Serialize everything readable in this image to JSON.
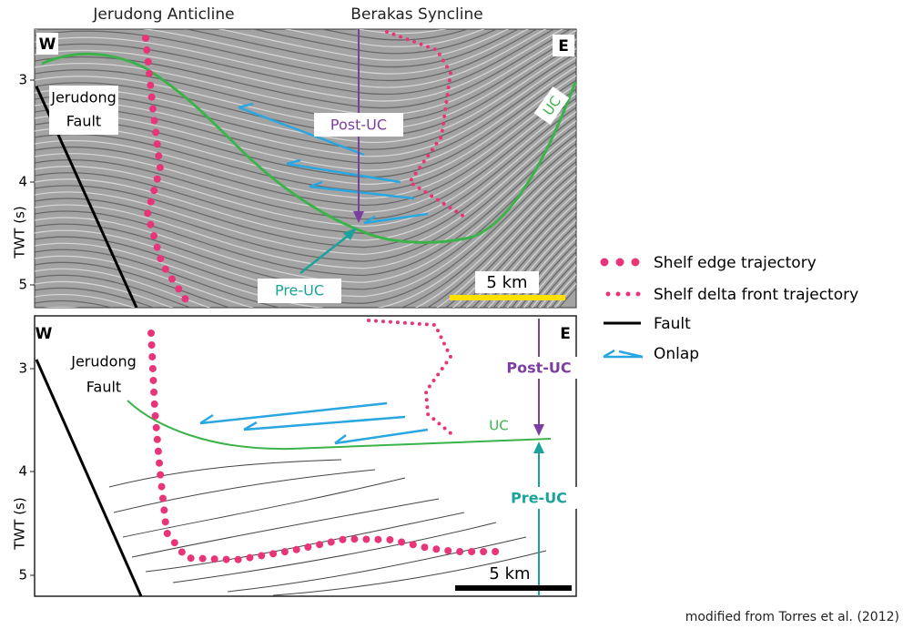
{
  "header": {
    "left": "Jerudong Anticline",
    "center": "Berakas Syncline"
  },
  "panel_a": {
    "west": "W",
    "east": "E",
    "fault": [
      "Jerudong",
      "Fault"
    ],
    "post": "Post-UC",
    "pre": "Pre-UC",
    "uc": "UC",
    "scale": "5 km",
    "y_axis": {
      "label": "TWT (s)",
      "ticks": [
        3,
        4,
        5
      ]
    }
  },
  "panel_b": {
    "west": "W",
    "east": "E",
    "fault": [
      "Jerudong",
      "Fault"
    ],
    "post": "Post-UC",
    "pre": "Pre-UC",
    "uc": "UC",
    "scale": "5 km",
    "y_axis": {
      "label": "TWT (s)",
      "ticks": [
        3,
        4,
        5
      ]
    }
  },
  "legend": [
    "Shelf edge trajectory",
    "Shelf delta front trajectory",
    "Fault",
    "Onlap"
  ],
  "credit": "modified from Torres et al. (2012)"
}
